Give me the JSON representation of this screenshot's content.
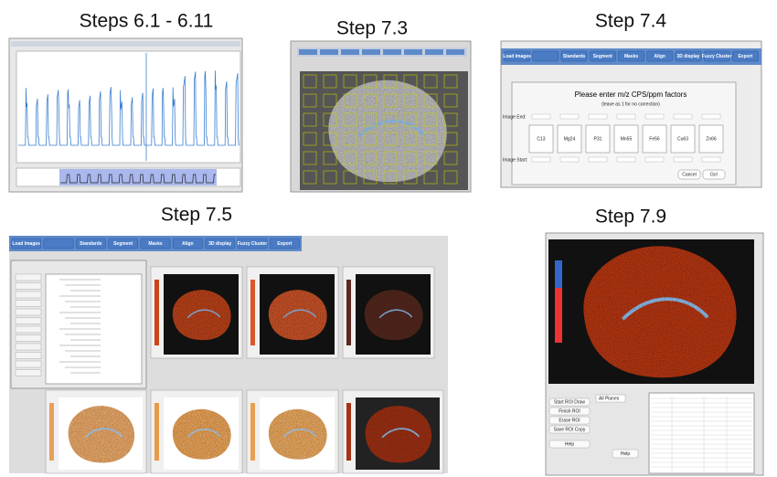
{
  "panels": [
    {
      "title": "Steps 6.1 - 6.11"
    },
    {
      "title": "Step 7.3"
    },
    {
      "title": "Step 7.4",
      "toolbar": [
        "Load Images",
        "",
        "Standards",
        "Segment",
        "Masks",
        "Align",
        "3D display",
        "Fuzzy Cluster",
        "Export"
      ],
      "dialog": {
        "prompt": "Please enter m/z CPS/ppm factors",
        "hint": "(leave as 1 for no correction)",
        "end_label": "Image End:",
        "start_label": "Image Start:",
        "elements": [
          "C13",
          "Mg24",
          "P31",
          "Mn55",
          "Fe56",
          "Cu63",
          "Zn66"
        ],
        "buttons": [
          "Cancel",
          "Go!"
        ]
      }
    },
    {
      "title": "Step 7.5",
      "toolbar": [
        "Load Images",
        "",
        "Standards",
        "Segment",
        "Masks",
        "Align",
        "3D display",
        "Fuzzy Cluster",
        "Export"
      ]
    },
    {
      "title": "Step 7.9",
      "roi_buttons": [
        "Start ROI Draw",
        "Finish ROI",
        "Erase ROI",
        "Save ROI Copy",
        "Help"
      ],
      "dropdown": "All Planes",
      "help": "Help"
    }
  ]
}
